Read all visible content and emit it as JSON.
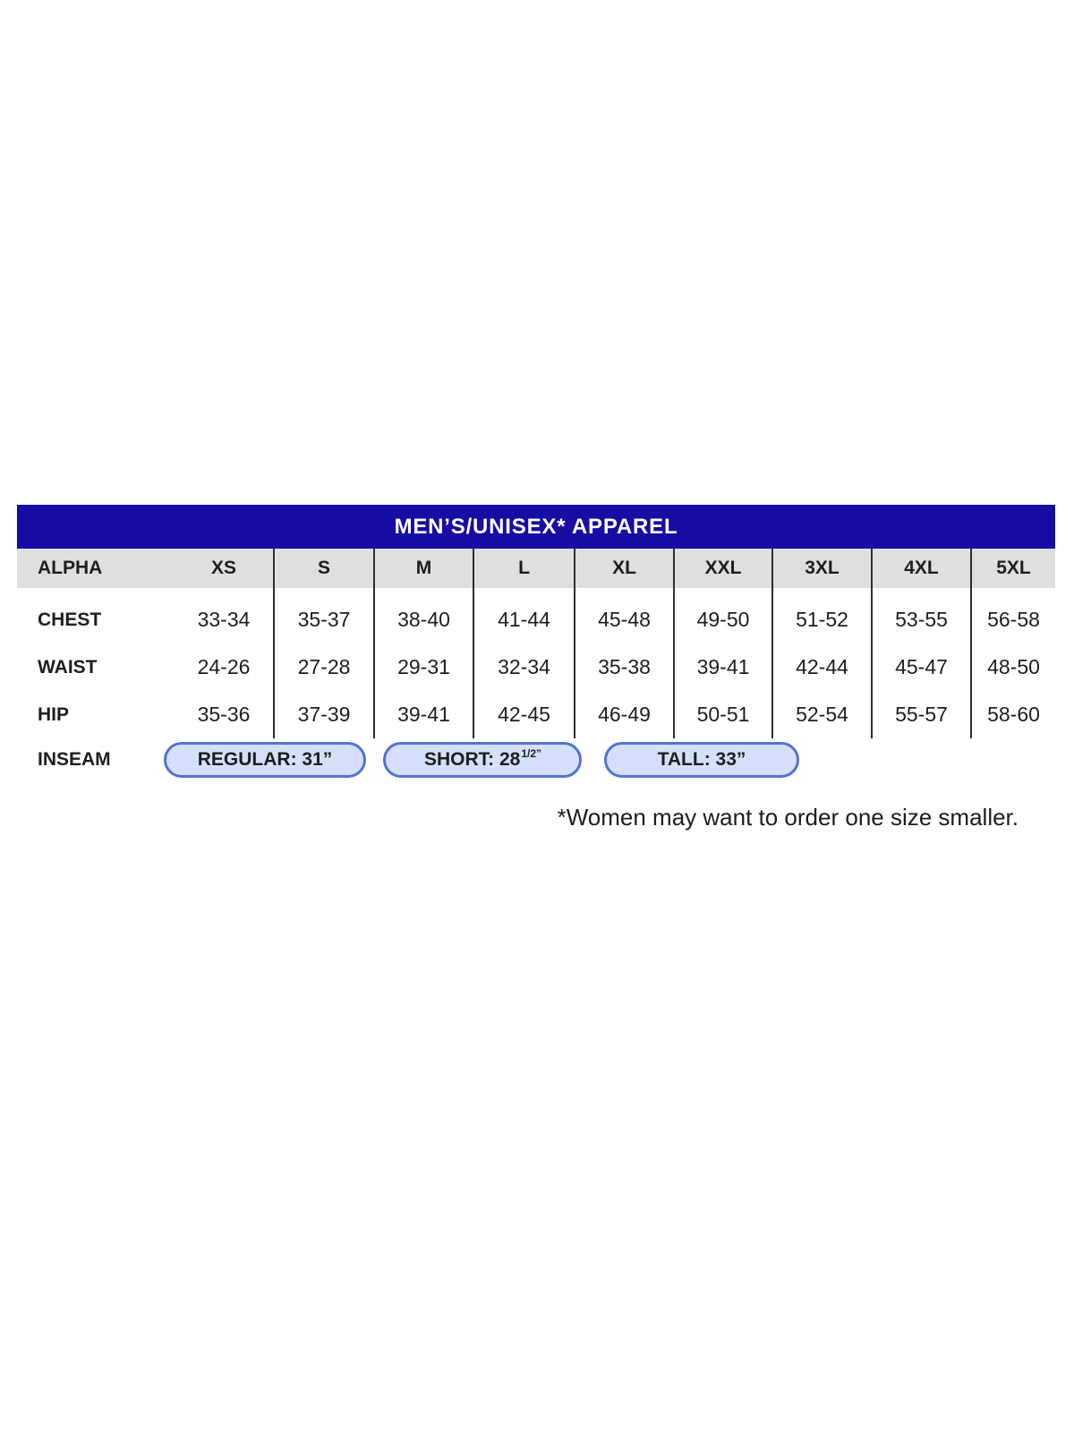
{
  "chart_data": {
    "type": "table",
    "title": "MEN’S/UNISEX* APPAREL",
    "columns": [
      "ALPHA",
      "XS",
      "S",
      "M",
      "L",
      "XL",
      "XXL",
      "3XL",
      "4XL",
      "5XL"
    ],
    "body": [
      {
        "label": "CHEST",
        "values": [
          "33-34",
          "35-37",
          "38-40",
          "41-44",
          "45-48",
          "49-50",
          "51-52",
          "53-55",
          "56-58"
        ]
      },
      {
        "label": "WAIST",
        "values": [
          "24-26",
          "27-28",
          "29-31",
          "32-34",
          "35-38",
          "39-41",
          "42-44",
          "45-47",
          "48-50"
        ]
      },
      {
        "label": "HIP",
        "values": [
          "35-36",
          "37-39",
          "39-41",
          "42-45",
          "46-49",
          "50-51",
          "52-54",
          "55-57",
          "58-60"
        ]
      }
    ],
    "inseam": {
      "label": "INSEAM",
      "pills": [
        {
          "text": "REGULAR: 31”",
          "sup": ""
        },
        {
          "text": "SHORT: 28",
          "sup": "1/2”"
        },
        {
          "text": "TALL: 33”",
          "sup": ""
        }
      ]
    },
    "footnote": "*Women may want to order one size smaller.",
    "layout": {
      "legend": "none",
      "grid": "vertical-dividers-between-size-columns"
    }
  },
  "colors": {
    "title_bar_blue": "#170CA3",
    "header_row_gray": "#DFDFDF",
    "pill_fill": "#D7E0FA",
    "pill_border": "#5273D2",
    "divider": "#2E2E2E",
    "text": "#1E1E1E"
  }
}
